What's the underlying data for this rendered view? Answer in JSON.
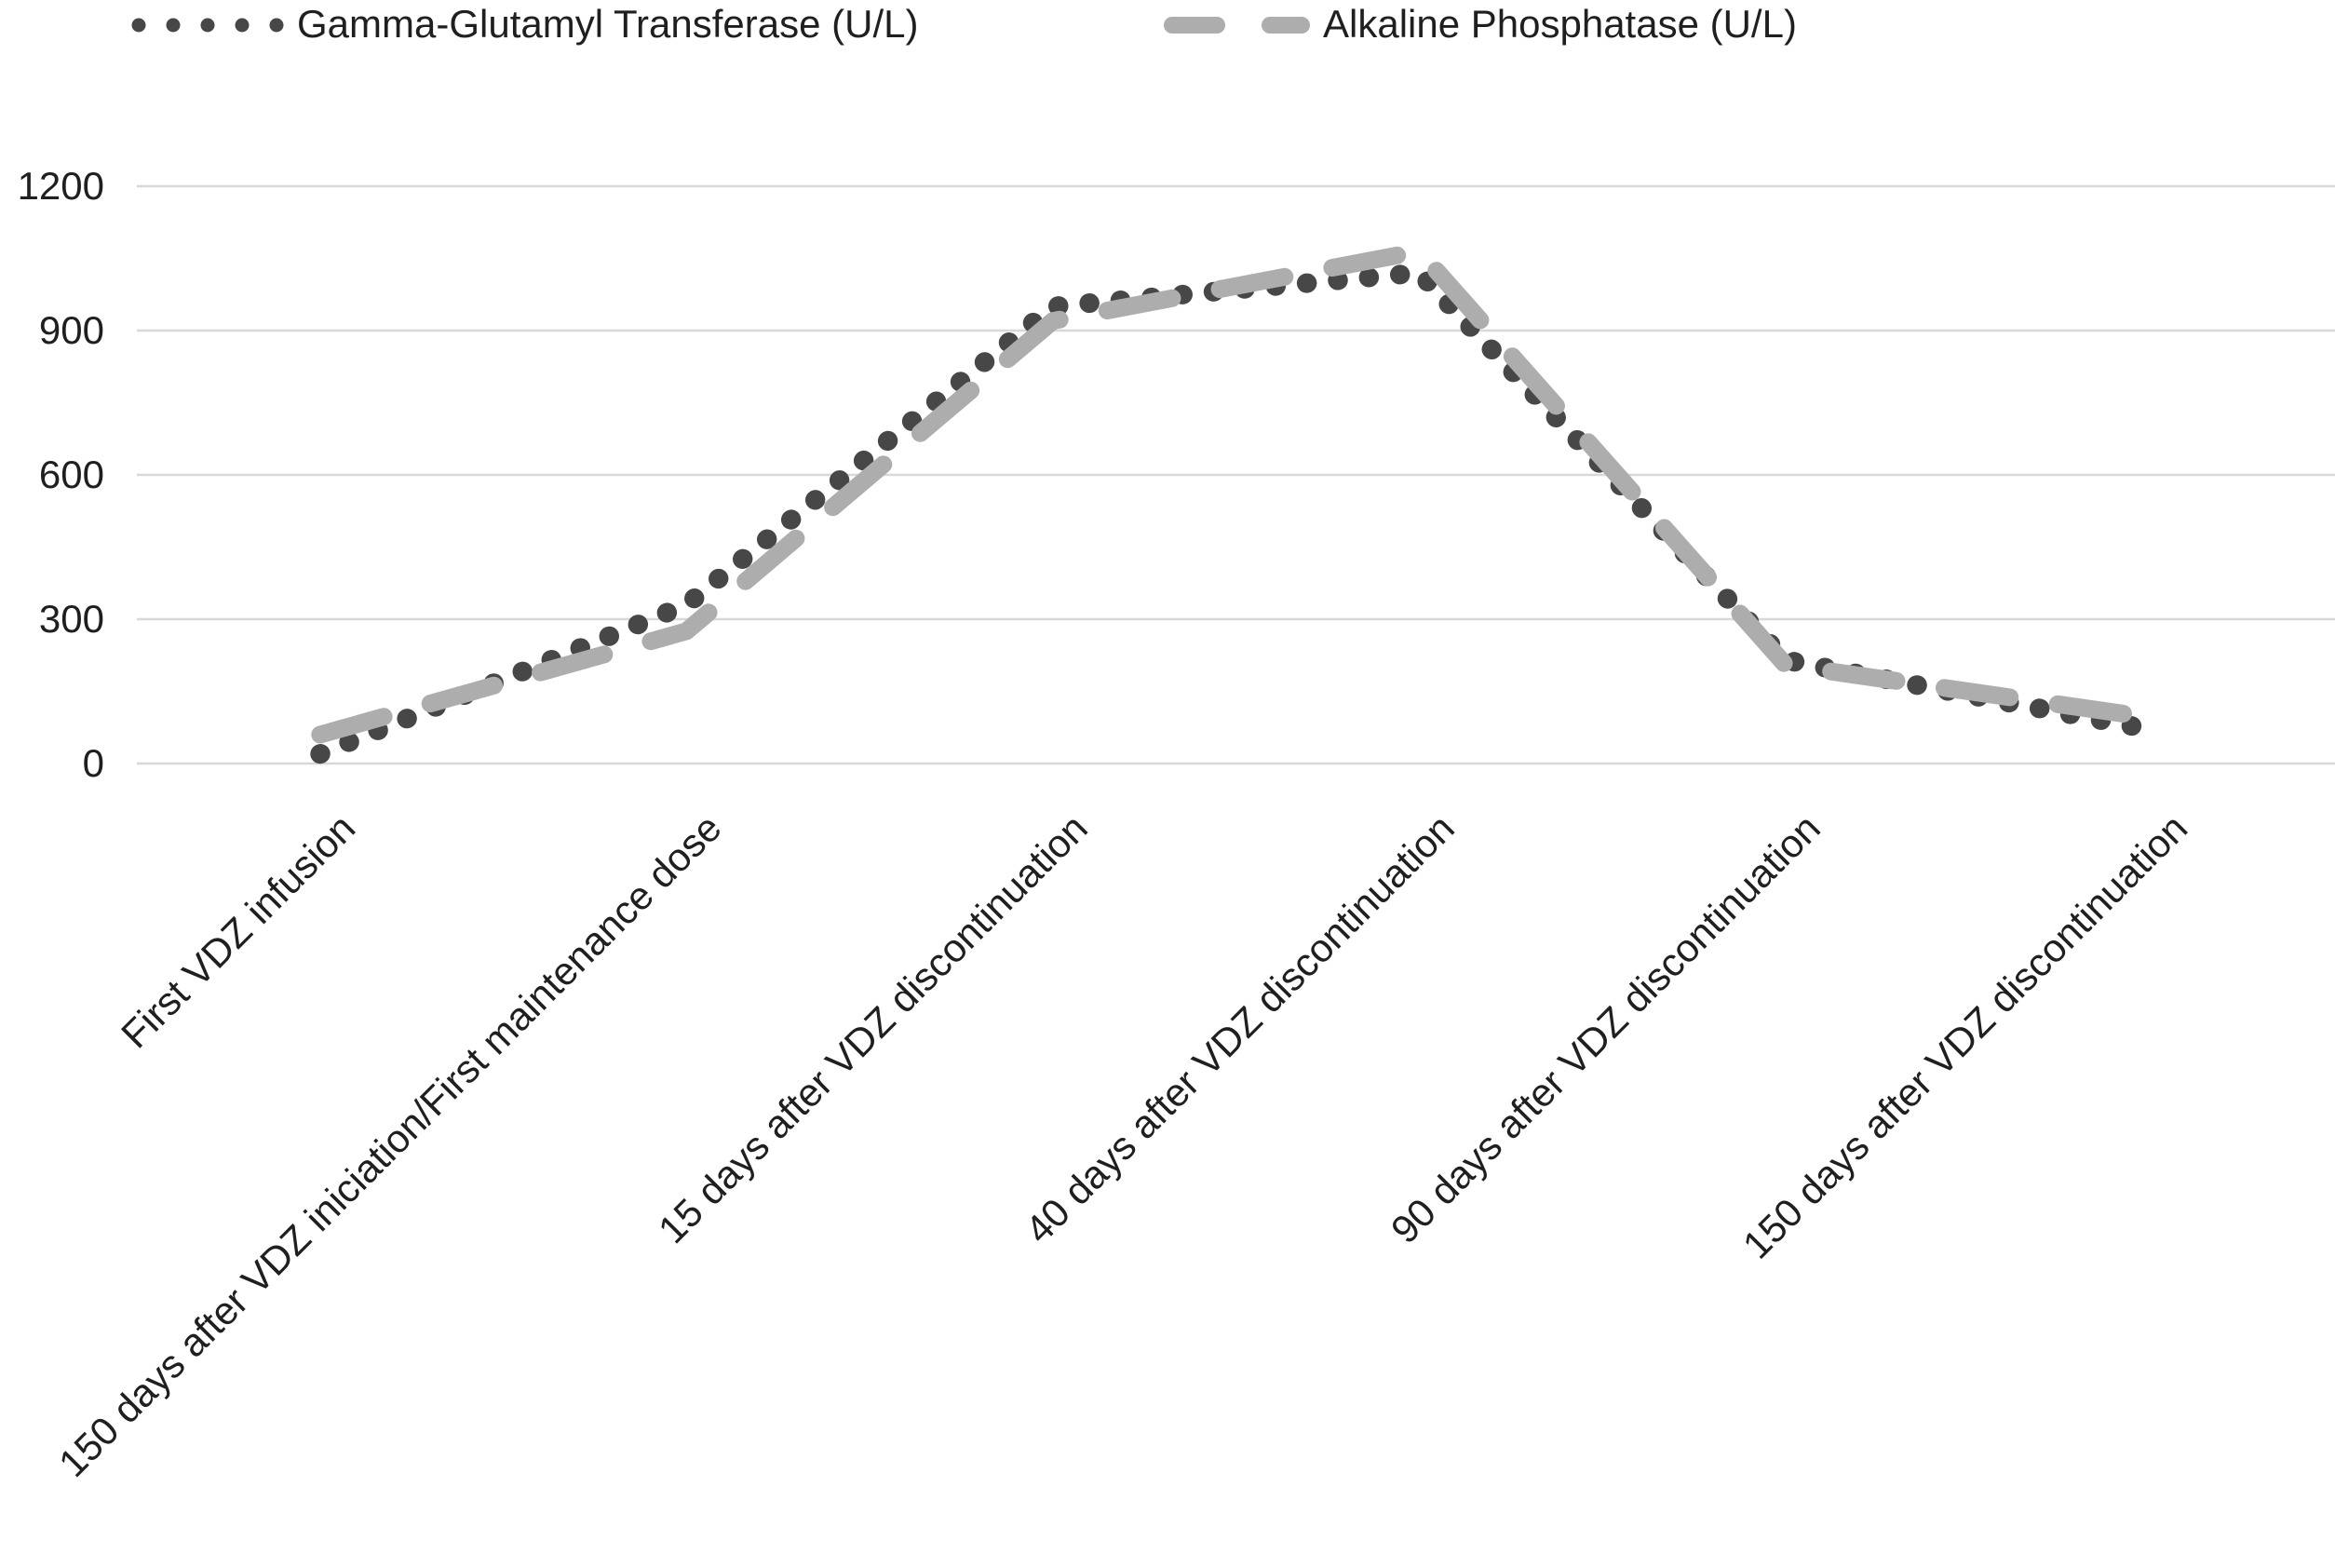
{
  "chart_data": {
    "type": "line",
    "title": "",
    "xlabel": "",
    "ylabel": "",
    "categories": [
      "First VDZ infusion",
      "150 days after VDZ iniciation/First maintenance dose",
      "15 days after VDZ discontinuation",
      "40 days after VDZ discontinuation",
      "90 days after VDZ discontinuation",
      "150 days after VDZ discontinuation"
    ],
    "series": [
      {
        "name": "Gamma-Glutamyl Transferase (U/L)",
        "values": [
          20,
          330,
          950,
          1020,
          215,
          70
        ],
        "color": "#474747",
        "line_style": "round-dot"
      },
      {
        "name": "Alkaline Phosphatase (U/L)",
        "values": [
          60,
          275,
          920,
          1065,
          205,
          95
        ],
        "color": "#adadad",
        "line_style": "dash"
      }
    ],
    "ylim": [
      0,
      1200
    ],
    "yticks": [
      0,
      300,
      600,
      900,
      1200
    ],
    "ytick_labels": [
      "0",
      "300",
      "600",
      "900",
      "1200"
    ],
    "grid": true,
    "gridline_color": "#d8d8d8",
    "text_color": "#1f1f1f",
    "background": "#ffffff",
    "legend_position": "top"
  }
}
